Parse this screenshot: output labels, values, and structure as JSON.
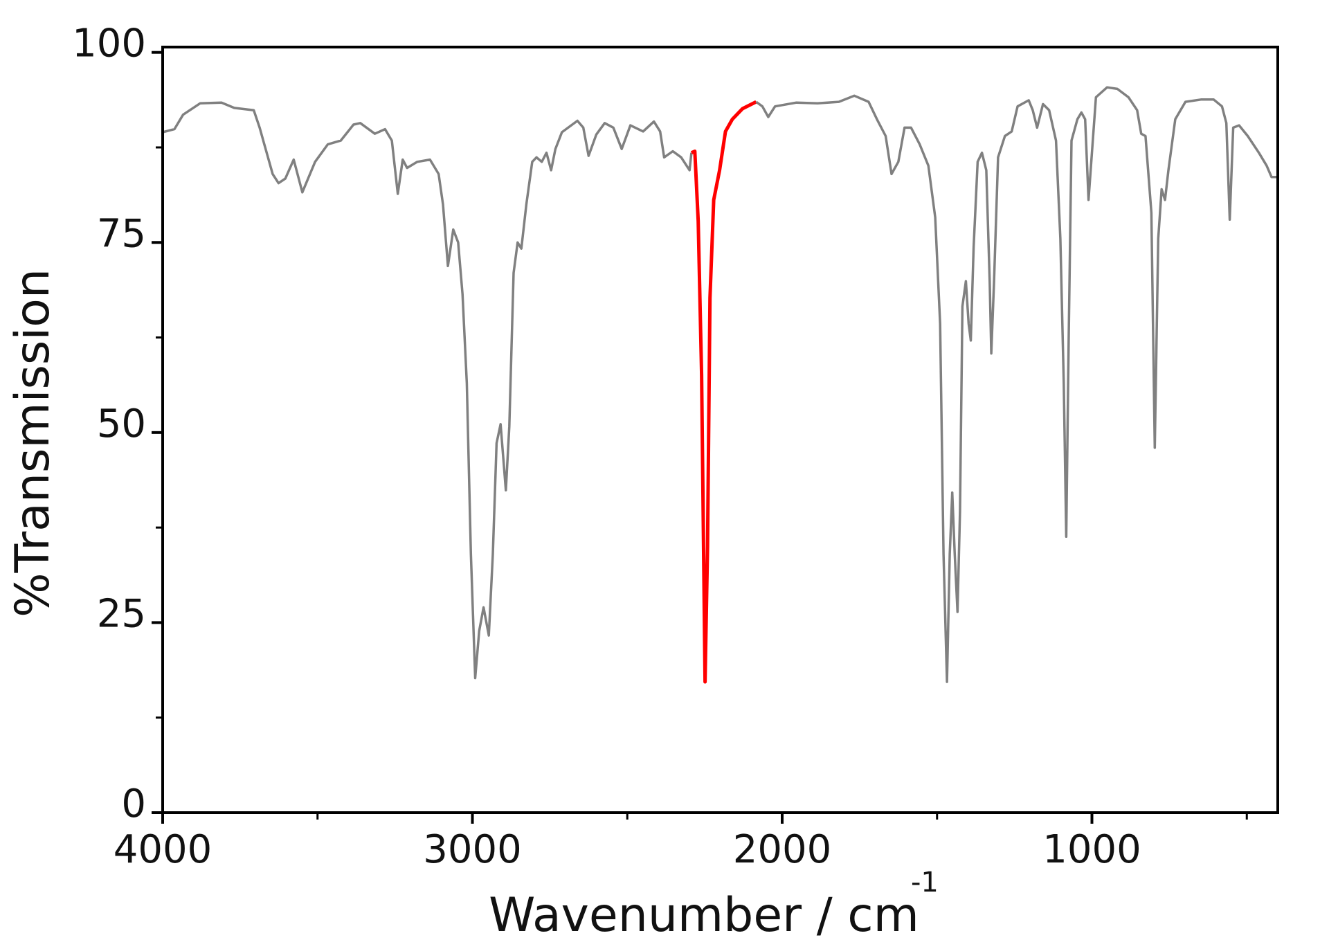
{
  "chart_data": {
    "type": "line",
    "title": "",
    "xlabel": "Wavenumber / cm",
    "xlabel_superscript": "-1",
    "ylabel": "%Transmission",
    "xlim": [
      4000,
      400
    ],
    "ylim": [
      0,
      100.7
    ],
    "x_reversed": true,
    "x_ticks": [
      4000,
      3000,
      2000,
      1000
    ],
    "x_tick_labels": [
      "4000",
      "3000",
      "2000",
      "1000"
    ],
    "x_minor_ticks": [
      3500,
      2500,
      1500,
      500
    ],
    "y_ticks": [
      0,
      25,
      50,
      75,
      100
    ],
    "y_tick_labels": [
      "0",
      "25",
      "50",
      "75",
      "100"
    ],
    "y_minor_ticks": [
      12.5,
      37.5,
      62.5,
      87.5
    ],
    "grid": false,
    "legend": "none",
    "series": [
      {
        "color": "#808080",
        "points": [
          [
            4000,
            89.5
          ],
          [
            3962,
            89.9
          ],
          [
            3934,
            91.8
          ],
          [
            3879,
            93.3
          ],
          [
            3810,
            93.4
          ],
          [
            3769,
            92.7
          ],
          [
            3706,
            92.4
          ],
          [
            3687,
            90.1
          ],
          [
            3645,
            84.0
          ],
          [
            3626,
            82.8
          ],
          [
            3604,
            83.4
          ],
          [
            3577,
            85.9
          ],
          [
            3549,
            81.6
          ],
          [
            3508,
            85.6
          ],
          [
            3467,
            87.9
          ],
          [
            3425,
            88.4
          ],
          [
            3384,
            90.5
          ],
          [
            3362,
            90.7
          ],
          [
            3315,
            89.3
          ],
          [
            3282,
            89.9
          ],
          [
            3260,
            88.4
          ],
          [
            3241,
            81.4
          ],
          [
            3225,
            85.9
          ],
          [
            3211,
            84.8
          ],
          [
            3178,
            85.6
          ],
          [
            3137,
            85.9
          ],
          [
            3109,
            84.0
          ],
          [
            3095,
            80.0
          ],
          [
            3079,
            71.9
          ],
          [
            3062,
            76.7
          ],
          [
            3046,
            75.0
          ],
          [
            3032,
            68.2
          ],
          [
            3018,
            56.5
          ],
          [
            3005,
            34.0
          ],
          [
            2991,
            17.7
          ],
          [
            2978,
            23.9
          ],
          [
            2964,
            27.0
          ],
          [
            2947,
            23.3
          ],
          [
            2934,
            34.0
          ],
          [
            2922,
            48.6
          ],
          [
            2909,
            51.1
          ],
          [
            2892,
            42.4
          ],
          [
            2881,
            50.8
          ],
          [
            2867,
            71.0
          ],
          [
            2854,
            75.0
          ],
          [
            2842,
            74.2
          ],
          [
            2826,
            80.0
          ],
          [
            2807,
            85.6
          ],
          [
            2793,
            86.2
          ],
          [
            2776,
            85.6
          ],
          [
            2761,
            86.8
          ],
          [
            2746,
            84.5
          ],
          [
            2732,
            87.3
          ],
          [
            2711,
            89.5
          ],
          [
            2661,
            91.0
          ],
          [
            2642,
            90.1
          ],
          [
            2625,
            86.4
          ],
          [
            2600,
            89.2
          ],
          [
            2573,
            90.7
          ],
          [
            2545,
            90.1
          ],
          [
            2518,
            87.3
          ],
          [
            2490,
            90.4
          ],
          [
            2449,
            89.6
          ],
          [
            2414,
            90.9
          ],
          [
            2394,
            89.6
          ],
          [
            2381,
            86.2
          ],
          [
            2353,
            87.0
          ],
          [
            2326,
            86.2
          ],
          [
            2299,
            84.5
          ],
          [
            2293,
            86.8
          ]
        ]
      },
      {
        "color": "#ff0000",
        "points": [
          [
            2293,
            86.8
          ],
          [
            2282,
            87.0
          ],
          [
            2271,
            77.8
          ],
          [
            2260,
            57.6
          ],
          [
            2249,
            17.2
          ],
          [
            2241,
            35.1
          ],
          [
            2233,
            67.7
          ],
          [
            2221,
            80.6
          ],
          [
            2202,
            84.5
          ],
          [
            2183,
            89.6
          ],
          [
            2161,
            91.2
          ],
          [
            2128,
            92.6
          ],
          [
            2084,
            93.5
          ]
        ]
      },
      {
        "color": "#808080",
        "points": [
          [
            2084,
            93.5
          ],
          [
            2064,
            92.9
          ],
          [
            2045,
            91.5
          ],
          [
            2023,
            92.9
          ],
          [
            1954,
            93.4
          ],
          [
            1886,
            93.3
          ],
          [
            1817,
            93.5
          ],
          [
            1767,
            94.3
          ],
          [
            1721,
            93.5
          ],
          [
            1694,
            91.2
          ],
          [
            1666,
            89.0
          ],
          [
            1647,
            84.0
          ],
          [
            1625,
            85.6
          ],
          [
            1605,
            90.1
          ],
          [
            1584,
            90.1
          ],
          [
            1556,
            87.9
          ],
          [
            1528,
            85.1
          ],
          [
            1506,
            78.3
          ],
          [
            1490,
            64.3
          ],
          [
            1479,
            34.0
          ],
          [
            1468,
            17.2
          ],
          [
            1459,
            34.0
          ],
          [
            1451,
            42.1
          ],
          [
            1443,
            34.0
          ],
          [
            1434,
            26.4
          ],
          [
            1426,
            39.6
          ],
          [
            1418,
            66.6
          ],
          [
            1407,
            69.9
          ],
          [
            1398,
            64.3
          ],
          [
            1391,
            62.1
          ],
          [
            1382,
            74.4
          ],
          [
            1369,
            85.6
          ],
          [
            1355,
            86.8
          ],
          [
            1341,
            84.5
          ],
          [
            1330,
            69.9
          ],
          [
            1325,
            60.4
          ],
          [
            1316,
            69.9
          ],
          [
            1303,
            86.2
          ],
          [
            1281,
            89.0
          ],
          [
            1259,
            89.6
          ],
          [
            1240,
            92.9
          ],
          [
            1204,
            93.7
          ],
          [
            1191,
            92.4
          ],
          [
            1177,
            90.1
          ],
          [
            1158,
            93.2
          ],
          [
            1138,
            92.4
          ],
          [
            1116,
            88.4
          ],
          [
            1102,
            75.5
          ],
          [
            1091,
            56.5
          ],
          [
            1083,
            36.3
          ],
          [
            1075,
            62.1
          ],
          [
            1066,
            88.4
          ],
          [
            1047,
            91.2
          ],
          [
            1034,
            92.1
          ],
          [
            1022,
            91.2
          ],
          [
            1011,
            80.6
          ],
          [
            1000,
            86.8
          ],
          [
            987,
            94.1
          ],
          [
            951,
            95.4
          ],
          [
            918,
            95.2
          ],
          [
            882,
            94.1
          ],
          [
            854,
            92.4
          ],
          [
            841,
            89.3
          ],
          [
            827,
            89.0
          ],
          [
            808,
            78.9
          ],
          [
            797,
            48.0
          ],
          [
            786,
            75.5
          ],
          [
            775,
            82.0
          ],
          [
            764,
            80.6
          ],
          [
            753,
            84.5
          ],
          [
            731,
            91.2
          ],
          [
            698,
            93.5
          ],
          [
            648,
            93.8
          ],
          [
            607,
            93.8
          ],
          [
            580,
            92.9
          ],
          [
            566,
            90.7
          ],
          [
            555,
            78.0
          ],
          [
            544,
            90.1
          ],
          [
            525,
            90.4
          ],
          [
            497,
            89.0
          ],
          [
            461,
            86.8
          ],
          [
            436,
            85.1
          ],
          [
            420,
            83.6
          ],
          [
            401,
            83.6
          ]
        ]
      }
    ]
  }
}
